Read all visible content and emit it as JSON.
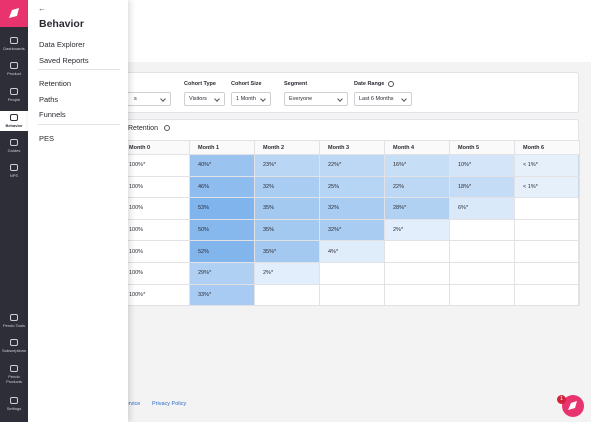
{
  "sidebar": {
    "items": [
      "Dashboards",
      "Product",
      "People",
      "Behavior",
      "Guides",
      "NPS"
    ],
    "bottom_items": [
      "Pendo Tools",
      "Subscriptions",
      "Pendo Products",
      "Settings"
    ]
  },
  "flyout": {
    "title": "Behavior",
    "groups": [
      [
        "Data Explorer",
        "Saved Reports"
      ],
      [
        "Retention",
        "Paths",
        "Funnels"
      ],
      [
        "PES"
      ]
    ]
  },
  "filters": {
    "first_value": "s",
    "fields": [
      {
        "label": "Cohort Type",
        "value": "Visitors"
      },
      {
        "label": "Cohort Size",
        "value": "1 Month"
      },
      {
        "label": "Segment",
        "value": "Everyone"
      },
      {
        "label": "Date Range",
        "value": "Last 6 Months"
      }
    ]
  },
  "retention": {
    "title": "Retention",
    "columns": [
      "Month 0",
      "Month 1",
      "Month 2",
      "Month 3",
      "Month 4",
      "Month 5",
      "Month 6"
    ],
    "rows": [
      [
        "100%*",
        "40%*",
        "23%*",
        "22%*",
        "16%*",
        "10%*",
        "< 1%*"
      ],
      [
        "100%",
        "46%",
        "32%",
        "25%",
        "22%",
        "18%*",
        "< 1%*"
      ],
      [
        "100%",
        "53%",
        "35%",
        "32%",
        "28%*",
        "6%*"
      ],
      [
        "100%",
        "50%",
        "35%",
        "32%*",
        "2%*"
      ],
      [
        "100%",
        "52%",
        "35%*",
        "4%*"
      ],
      [
        "100%",
        "29%*",
        "2%*"
      ],
      [
        "100%*",
        "33%*"
      ]
    ]
  },
  "footer": {
    "links": [
      "Service",
      "Privacy Policy"
    ]
  },
  "notification_badge": "1"
}
